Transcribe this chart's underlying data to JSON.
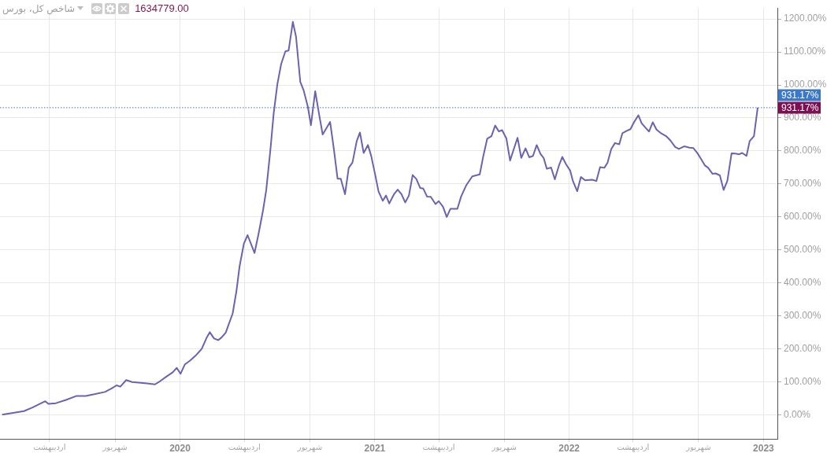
{
  "chart_data": {
    "type": "line",
    "title": "شاخص کل، بورس",
    "subtitle": "1634779.00",
    "color": "#6b62b0",
    "x": [
      "2019-02-01",
      "2019-03-14",
      "2019-03-30",
      "2019-04-23",
      "2019-04-29",
      "2019-05-13",
      "2019-06-01",
      "2019-06-21",
      "2019-07-08",
      "2019-07-24",
      "2019-08-13",
      "2019-08-25",
      "2019-09-04",
      "2019-09-11",
      "2019-09-22",
      "2019-10-03",
      "2019-10-31",
      "2019-11-15",
      "2019-11-25",
      "2019-12-07",
      "2019-12-18",
      "2019-12-26",
      "2020-01-02",
      "2020-01-10",
      "2020-01-20",
      "2020-01-31",
      "2020-02-11",
      "2020-02-20",
      "2020-02-26",
      "2020-03-05",
      "2020-03-13",
      "2020-03-19",
      "2020-03-27",
      "2020-04-09",
      "2020-04-16",
      "2020-04-22",
      "2020-04-30",
      "2020-05-07",
      "2020-05-20",
      "2020-05-28",
      "2020-06-05",
      "2020-06-11",
      "2020-06-19",
      "2020-06-25",
      "2020-07-02",
      "2020-07-09",
      "2020-07-17",
      "2020-07-23",
      "2020-07-31",
      "2020-08-06",
      "2020-08-14",
      "2020-08-20",
      "2020-08-28",
      "2020-09-03",
      "2020-09-11",
      "2020-09-18",
      "2020-09-25",
      "2020-10-01",
      "2020-10-09",
      "2020-10-16",
      "2020-10-23",
      "2020-10-29",
      "2020-11-06",
      "2020-11-13",
      "2020-11-20",
      "2020-11-28",
      "2020-12-04",
      "2020-12-11",
      "2020-12-19",
      "2020-12-25",
      "2021-01-01",
      "2021-01-08",
      "2021-01-16",
      "2021-01-22",
      "2021-01-28",
      "2021-02-06",
      "2021-02-13",
      "2021-02-20",
      "2021-02-27",
      "2021-03-06",
      "2021-03-13",
      "2021-03-20",
      "2021-03-27",
      "2021-04-02",
      "2021-04-09",
      "2021-04-16",
      "2021-04-25",
      "2021-05-01",
      "2021-05-09",
      "2021-05-16",
      "2021-05-23",
      "2021-06-05",
      "2021-06-12",
      "2021-06-22",
      "2021-07-03",
      "2021-07-17",
      "2021-07-24",
      "2021-07-31",
      "2021-08-08",
      "2021-08-15",
      "2021-08-22",
      "2021-08-28",
      "2021-09-05",
      "2021-09-12",
      "2021-09-19",
      "2021-09-26",
      "2021-10-03",
      "2021-10-11",
      "2021-10-18",
      "2021-10-25",
      "2021-11-01",
      "2021-11-08",
      "2021-11-14",
      "2021-11-20",
      "2021-11-28",
      "2021-12-05",
      "2021-12-13",
      "2021-12-19",
      "2021-12-26",
      "2022-01-03",
      "2022-01-08",
      "2022-01-16",
      "2022-01-23",
      "2022-01-31",
      "2022-02-13",
      "2022-02-21",
      "2022-02-28",
      "2022-03-08",
      "2022-03-14",
      "2022-03-21",
      "2022-03-28",
      "2022-04-05",
      "2022-04-11",
      "2022-04-19",
      "2022-04-26",
      "2022-05-03",
      "2022-05-11",
      "2022-05-17",
      "2022-05-24",
      "2022-05-31",
      "2022-06-07",
      "2022-06-14",
      "2022-06-23",
      "2022-07-02",
      "2022-07-10",
      "2022-07-19",
      "2022-07-26",
      "2022-08-05",
      "2022-08-15",
      "2022-08-22",
      "2022-08-30",
      "2022-09-06",
      "2022-09-13",
      "2022-09-19",
      "2022-09-27",
      "2022-10-03",
      "2022-10-11",
      "2022-10-18",
      "2022-10-25",
      "2022-11-02",
      "2022-11-09",
      "2022-11-16",
      "2022-11-22",
      "2022-11-30",
      "2022-12-06",
      "2022-12-14",
      "2022-12-21"
    ],
    "values": [
      1,
      12,
      23,
      42,
      34,
      36,
      46,
      58,
      58,
      63,
      70,
      80,
      90,
      86,
      106,
      100,
      96,
      93,
      103,
      117,
      129,
      143,
      125,
      153,
      165,
      181,
      201,
      234,
      251,
      232,
      227,
      235,
      250,
      308,
      375,
      451,
      519,
      545,
      491,
      552,
      620,
      681,
      806,
      914,
      1003,
      1063,
      1102,
      1104,
      1191,
      1146,
      1009,
      985,
      935,
      878,
      981,
      914,
      850,
      866,
      888,
      806,
      716,
      716,
      669,
      749,
      765,
      830,
      856,
      794,
      818,
      786,
      733,
      677,
      649,
      665,
      641,
      669,
      683,
      669,
      644,
      665,
      727,
      715,
      688,
      686,
      662,
      661,
      639,
      648,
      631,
      600,
      625,
      625,
      662,
      697,
      723,
      729,
      787,
      837,
      845,
      877,
      859,
      863,
      838,
      771,
      806,
      840,
      779,
      808,
      781,
      785,
      818,
      791,
      779,
      746,
      750,
      714,
      757,
      782,
      760,
      740,
      709,
      678,
      721,
      711,
      713,
      709,
      751,
      749,
      764,
      806,
      824,
      820,
      854,
      861,
      866,
      888,
      908,
      884,
      871,
      859,
      887,
      865,
      853,
      845,
      832,
      812,
      806,
      814,
      810,
      809,
      793,
      775,
      756,
      749,
      731,
      732,
      726,
      682,
      709,
      793,
      792,
      790,
      794,
      785,
      830,
      845,
      931.17
    ],
    "xlim": [
      "2019-01-28",
      "2023-01-27"
    ],
    "xticks": [
      {
        "value": "2019-05-01",
        "label": "اردیبهشت"
      },
      {
        "value": "2019-09-01",
        "label": "شهریور"
      },
      "2020",
      {
        "value": "2020-05-01",
        "label": "اردیبهشت"
      },
      {
        "value": "2020-09-01",
        "label": "شهریور"
      },
      "2021",
      {
        "value": "2021-05-01",
        "label": "اردیبهشت"
      },
      {
        "value": "2021-09-01",
        "label": "شهریور"
      },
      "2022",
      {
        "value": "2022-05-01",
        "label": "اردیبهشت"
      },
      {
        "value": "2022-09-01",
        "label": "شهریور"
      },
      "2023"
    ],
    "ylim": [
      -72,
      1233
    ],
    "yticks": [
      {
        "value": 0,
        "label": "0.00%"
      },
      {
        "value": 100,
        "label": "100.00%"
      },
      {
        "value": 200,
        "label": "200.00%"
      },
      {
        "value": 300,
        "label": "300.00%"
      },
      {
        "value": 400,
        "label": "400.00%"
      },
      {
        "value": 500,
        "label": "500.00%"
      },
      {
        "value": 600,
        "label": "600.00%"
      },
      {
        "value": 700,
        "label": "700.00%"
      },
      {
        "value": 800,
        "label": "800.00%"
      },
      {
        "value": 900,
        "label": "900.00%"
      },
      {
        "value": 1000,
        "label": "1000.00%"
      },
      {
        "value": 1100,
        "label": "1100.00%"
      },
      {
        "value": 1200,
        "label": "1200.00%"
      }
    ],
    "grid": true,
    "ref_lines": [
      {
        "axis": "y",
        "value": 931.17,
        "label": "931.17%",
        "color": "#3a78c9",
        "line_style": "dotted"
      }
    ],
    "annotations": [
      "931.17%"
    ]
  }
}
